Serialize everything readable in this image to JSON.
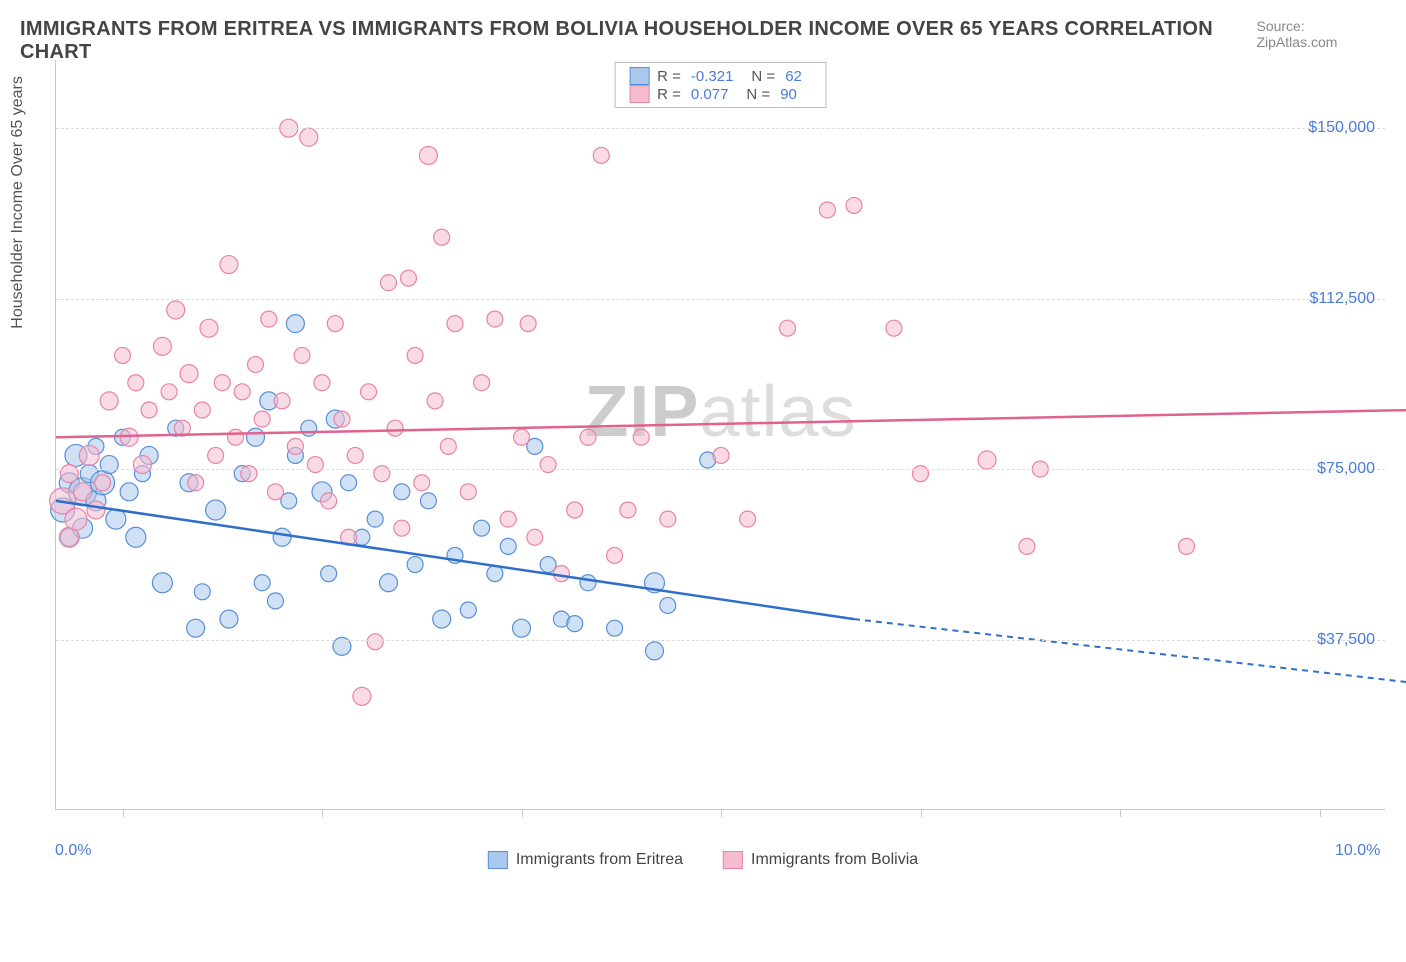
{
  "title": "IMMIGRANTS FROM ERITREA VS IMMIGRANTS FROM BOLIVIA HOUSEHOLDER INCOME OVER 65 YEARS CORRELATION CHART",
  "source": "Source: ZipAtlas.com",
  "y_axis": {
    "title": "Householder Income Over 65 years",
    "ticks": [
      {
        "value": 37500,
        "label": "$37,500"
      },
      {
        "value": 75000,
        "label": "$75,000"
      },
      {
        "value": 112500,
        "label": "$112,500"
      },
      {
        "value": 150000,
        "label": "$150,000"
      }
    ],
    "min": 0,
    "max": 165000
  },
  "x_axis": {
    "min": 0,
    "max": 10.0,
    "ticks": [
      0.5,
      2.0,
      3.5,
      5.0,
      6.5,
      8.0,
      9.5
    ],
    "left_label": "0.0%",
    "right_label": "10.0%"
  },
  "watermark": {
    "part1": "ZIP",
    "part2": "atlas"
  },
  "series": [
    {
      "name": "Immigrants from Eritrea",
      "fill": "#a9c8ec",
      "stroke": "#5a8fd6",
      "fill_opacity": 0.55,
      "line_color": "#2f6fc9",
      "stats": {
        "R": "-0.321",
        "N": "62"
      },
      "regression": {
        "x1": 0.0,
        "y1": 68000,
        "x2": 6.0,
        "y2": 42000,
        "solid_until_x": 6.0,
        "dash_to_x": 10.2,
        "dash_to_y": 28000
      },
      "points": [
        {
          "x": 0.05,
          "y": 66000,
          "r": 12
        },
        {
          "x": 0.1,
          "y": 72000,
          "r": 10
        },
        {
          "x": 0.1,
          "y": 60000,
          "r": 9
        },
        {
          "x": 0.15,
          "y": 78000,
          "r": 11
        },
        {
          "x": 0.2,
          "y": 70000,
          "r": 14
        },
        {
          "x": 0.2,
          "y": 62000,
          "r": 10
        },
        {
          "x": 0.25,
          "y": 74000,
          "r": 9
        },
        {
          "x": 0.3,
          "y": 68000,
          "r": 10
        },
        {
          "x": 0.3,
          "y": 80000,
          "r": 8
        },
        {
          "x": 0.35,
          "y": 72000,
          "r": 12
        },
        {
          "x": 0.4,
          "y": 76000,
          "r": 9
        },
        {
          "x": 0.45,
          "y": 64000,
          "r": 10
        },
        {
          "x": 0.5,
          "y": 82000,
          "r": 8
        },
        {
          "x": 0.55,
          "y": 70000,
          "r": 9
        },
        {
          "x": 0.6,
          "y": 60000,
          "r": 10
        },
        {
          "x": 0.65,
          "y": 74000,
          "r": 8
        },
        {
          "x": 0.7,
          "y": 78000,
          "r": 9
        },
        {
          "x": 0.8,
          "y": 50000,
          "r": 10
        },
        {
          "x": 0.9,
          "y": 84000,
          "r": 8
        },
        {
          "x": 1.0,
          "y": 72000,
          "r": 9
        },
        {
          "x": 1.05,
          "y": 40000,
          "r": 9
        },
        {
          "x": 1.1,
          "y": 48000,
          "r": 8
        },
        {
          "x": 1.2,
          "y": 66000,
          "r": 10
        },
        {
          "x": 1.3,
          "y": 42000,
          "r": 9
        },
        {
          "x": 1.4,
          "y": 74000,
          "r": 8
        },
        {
          "x": 1.5,
          "y": 82000,
          "r": 9
        },
        {
          "x": 1.55,
          "y": 50000,
          "r": 8
        },
        {
          "x": 1.6,
          "y": 90000,
          "r": 9
        },
        {
          "x": 1.65,
          "y": 46000,
          "r": 8
        },
        {
          "x": 1.7,
          "y": 60000,
          "r": 9
        },
        {
          "x": 1.75,
          "y": 68000,
          "r": 8
        },
        {
          "x": 1.8,
          "y": 107000,
          "r": 9
        },
        {
          "x": 1.8,
          "y": 78000,
          "r": 8
        },
        {
          "x": 1.9,
          "y": 84000,
          "r": 8
        },
        {
          "x": 2.0,
          "y": 70000,
          "r": 10
        },
        {
          "x": 2.05,
          "y": 52000,
          "r": 8
        },
        {
          "x": 2.1,
          "y": 86000,
          "r": 9
        },
        {
          "x": 2.15,
          "y": 36000,
          "r": 9
        },
        {
          "x": 2.2,
          "y": 72000,
          "r": 8
        },
        {
          "x": 2.3,
          "y": 60000,
          "r": 8
        },
        {
          "x": 2.4,
          "y": 64000,
          "r": 8
        },
        {
          "x": 2.5,
          "y": 50000,
          "r": 9
        },
        {
          "x": 2.6,
          "y": 70000,
          "r": 8
        },
        {
          "x": 2.7,
          "y": 54000,
          "r": 8
        },
        {
          "x": 2.8,
          "y": 68000,
          "r": 8
        },
        {
          "x": 2.9,
          "y": 42000,
          "r": 9
        },
        {
          "x": 3.0,
          "y": 56000,
          "r": 8
        },
        {
          "x": 3.1,
          "y": 44000,
          "r": 8
        },
        {
          "x": 3.2,
          "y": 62000,
          "r": 8
        },
        {
          "x": 3.3,
          "y": 52000,
          "r": 8
        },
        {
          "x": 3.4,
          "y": 58000,
          "r": 8
        },
        {
          "x": 3.5,
          "y": 40000,
          "r": 9
        },
        {
          "x": 3.6,
          "y": 80000,
          "r": 8
        },
        {
          "x": 3.7,
          "y": 54000,
          "r": 8
        },
        {
          "x": 3.8,
          "y": 42000,
          "r": 8
        },
        {
          "x": 3.9,
          "y": 41000,
          "r": 8
        },
        {
          "x": 4.0,
          "y": 50000,
          "r": 8
        },
        {
          "x": 4.2,
          "y": 40000,
          "r": 8
        },
        {
          "x": 4.5,
          "y": 50000,
          "r": 10
        },
        {
          "x": 4.5,
          "y": 35000,
          "r": 9
        },
        {
          "x": 4.6,
          "y": 45000,
          "r": 8
        },
        {
          "x": 4.9,
          "y": 77000,
          "r": 8
        }
      ]
    },
    {
      "name": "Immigrants from Bolivia",
      "fill": "#f5bccd",
      "stroke": "#e884a6",
      "fill_opacity": 0.55,
      "line_color": "#e0628e",
      "stats": {
        "R": "0.077",
        "N": "90"
      },
      "regression": {
        "x1": 0.0,
        "y1": 82000,
        "x2": 10.2,
        "y2": 88000,
        "solid_until_x": 10.2
      },
      "points": [
        {
          "x": 0.05,
          "y": 68000,
          "r": 13
        },
        {
          "x": 0.1,
          "y": 60000,
          "r": 10
        },
        {
          "x": 0.1,
          "y": 74000,
          "r": 9
        },
        {
          "x": 0.15,
          "y": 64000,
          "r": 11
        },
        {
          "x": 0.2,
          "y": 70000,
          "r": 9
        },
        {
          "x": 0.25,
          "y": 78000,
          "r": 10
        },
        {
          "x": 0.3,
          "y": 66000,
          "r": 9
        },
        {
          "x": 0.35,
          "y": 72000,
          "r": 8
        },
        {
          "x": 0.4,
          "y": 90000,
          "r": 9
        },
        {
          "x": 0.5,
          "y": 100000,
          "r": 8
        },
        {
          "x": 0.55,
          "y": 82000,
          "r": 9
        },
        {
          "x": 0.6,
          "y": 94000,
          "r": 8
        },
        {
          "x": 0.65,
          "y": 76000,
          "r": 9
        },
        {
          "x": 0.7,
          "y": 88000,
          "r": 8
        },
        {
          "x": 0.8,
          "y": 102000,
          "r": 9
        },
        {
          "x": 0.85,
          "y": 92000,
          "r": 8
        },
        {
          "x": 0.9,
          "y": 110000,
          "r": 9
        },
        {
          "x": 0.95,
          "y": 84000,
          "r": 8
        },
        {
          "x": 1.0,
          "y": 96000,
          "r": 9
        },
        {
          "x": 1.05,
          "y": 72000,
          "r": 8
        },
        {
          "x": 1.1,
          "y": 88000,
          "r": 8
        },
        {
          "x": 1.15,
          "y": 106000,
          "r": 9
        },
        {
          "x": 1.2,
          "y": 78000,
          "r": 8
        },
        {
          "x": 1.25,
          "y": 94000,
          "r": 8
        },
        {
          "x": 1.3,
          "y": 120000,
          "r": 9
        },
        {
          "x": 1.35,
          "y": 82000,
          "r": 8
        },
        {
          "x": 1.4,
          "y": 92000,
          "r": 8
        },
        {
          "x": 1.45,
          "y": 74000,
          "r": 8
        },
        {
          "x": 1.5,
          "y": 98000,
          "r": 8
        },
        {
          "x": 1.55,
          "y": 86000,
          "r": 8
        },
        {
          "x": 1.6,
          "y": 108000,
          "r": 8
        },
        {
          "x": 1.65,
          "y": 70000,
          "r": 8
        },
        {
          "x": 1.7,
          "y": 90000,
          "r": 8
        },
        {
          "x": 1.75,
          "y": 150000,
          "r": 9
        },
        {
          "x": 1.8,
          "y": 80000,
          "r": 8
        },
        {
          "x": 1.85,
          "y": 100000,
          "r": 8
        },
        {
          "x": 1.9,
          "y": 148000,
          "r": 9
        },
        {
          "x": 1.95,
          "y": 76000,
          "r": 8
        },
        {
          "x": 2.0,
          "y": 94000,
          "r": 8
        },
        {
          "x": 2.05,
          "y": 68000,
          "r": 8
        },
        {
          "x": 2.1,
          "y": 107000,
          "r": 8
        },
        {
          "x": 2.15,
          "y": 86000,
          "r": 8
        },
        {
          "x": 2.2,
          "y": 60000,
          "r": 8
        },
        {
          "x": 2.25,
          "y": 78000,
          "r": 8
        },
        {
          "x": 2.3,
          "y": 25000,
          "r": 9
        },
        {
          "x": 2.35,
          "y": 92000,
          "r": 8
        },
        {
          "x": 2.4,
          "y": 37000,
          "r": 8
        },
        {
          "x": 2.45,
          "y": 74000,
          "r": 8
        },
        {
          "x": 2.5,
          "y": 116000,
          "r": 8
        },
        {
          "x": 2.55,
          "y": 84000,
          "r": 8
        },
        {
          "x": 2.6,
          "y": 62000,
          "r": 8
        },
        {
          "x": 2.65,
          "y": 117000,
          "r": 8
        },
        {
          "x": 2.7,
          "y": 100000,
          "r": 8
        },
        {
          "x": 2.75,
          "y": 72000,
          "r": 8
        },
        {
          "x": 2.8,
          "y": 144000,
          "r": 9
        },
        {
          "x": 2.85,
          "y": 90000,
          "r": 8
        },
        {
          "x": 2.9,
          "y": 126000,
          "r": 8
        },
        {
          "x": 2.95,
          "y": 80000,
          "r": 8
        },
        {
          "x": 3.0,
          "y": 107000,
          "r": 8
        },
        {
          "x": 3.1,
          "y": 70000,
          "r": 8
        },
        {
          "x": 3.2,
          "y": 94000,
          "r": 8
        },
        {
          "x": 3.3,
          "y": 108000,
          "r": 8
        },
        {
          "x": 3.4,
          "y": 64000,
          "r": 8
        },
        {
          "x": 3.5,
          "y": 82000,
          "r": 8
        },
        {
          "x": 3.55,
          "y": 107000,
          "r": 8
        },
        {
          "x": 3.6,
          "y": 60000,
          "r": 8
        },
        {
          "x": 3.7,
          "y": 76000,
          "r": 8
        },
        {
          "x": 3.8,
          "y": 52000,
          "r": 8
        },
        {
          "x": 3.9,
          "y": 66000,
          "r": 8
        },
        {
          "x": 4.0,
          "y": 82000,
          "r": 8
        },
        {
          "x": 4.1,
          "y": 144000,
          "r": 8
        },
        {
          "x": 4.2,
          "y": 56000,
          "r": 8
        },
        {
          "x": 4.3,
          "y": 66000,
          "r": 8
        },
        {
          "x": 4.4,
          "y": 82000,
          "r": 8
        },
        {
          "x": 4.6,
          "y": 64000,
          "r": 8
        },
        {
          "x": 5.0,
          "y": 78000,
          "r": 8
        },
        {
          "x": 5.2,
          "y": 64000,
          "r": 8
        },
        {
          "x": 5.5,
          "y": 106000,
          "r": 8
        },
        {
          "x": 5.8,
          "y": 132000,
          "r": 8
        },
        {
          "x": 6.0,
          "y": 133000,
          "r": 8
        },
        {
          "x": 6.3,
          "y": 106000,
          "r": 8
        },
        {
          "x": 6.5,
          "y": 74000,
          "r": 8
        },
        {
          "x": 7.0,
          "y": 77000,
          "r": 9
        },
        {
          "x": 7.3,
          "y": 58000,
          "r": 8
        },
        {
          "x": 7.4,
          "y": 75000,
          "r": 8
        },
        {
          "x": 8.5,
          "y": 58000,
          "r": 8
        }
      ]
    }
  ],
  "bottom_legend": [
    {
      "label": "Immigrants from Eritrea",
      "fill": "#a9c8ec",
      "stroke": "#5a8fd6"
    },
    {
      "label": "Immigrants from Bolivia",
      "fill": "#f5bccd",
      "stroke": "#e884a6"
    }
  ]
}
